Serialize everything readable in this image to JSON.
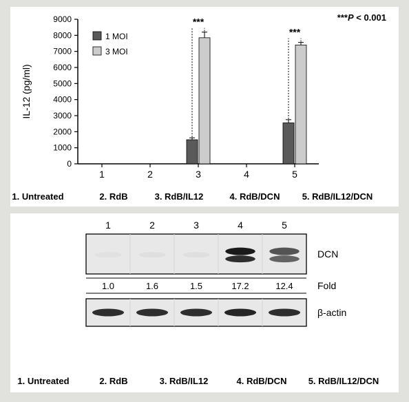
{
  "chart": {
    "type": "bar",
    "ylabel": "IL-12 (pg/ml)",
    "ylabel_fontsize": 14,
    "ylim": [
      0,
      9000
    ],
    "ytick_step": 1000,
    "yticks": [
      0,
      1000,
      2000,
      3000,
      4000,
      5000,
      6000,
      7000,
      8000,
      9000
    ],
    "categories": [
      "1",
      "2",
      "3",
      "4",
      "5"
    ],
    "series": [
      {
        "name": "1 MOI",
        "color": "#5a5a5a"
      },
      {
        "name": "3 MOI",
        "color": "#cccccc"
      }
    ],
    "values_moi1": [
      0,
      0,
      1500,
      0,
      2550
    ],
    "values_moi3": [
      0,
      0,
      7850,
      0,
      7400
    ],
    "err_moi1": [
      0,
      0,
      120,
      0,
      200
    ],
    "err_moi3": [
      0,
      0,
      350,
      0,
      160
    ],
    "sig_pairs": [
      3,
      5
    ],
    "sig_marker": "***",
    "sig_note": "***P < 0.001",
    "sig_note_italic_P": true,
    "axis_color": "#000000",
    "tick_fontsize": 12,
    "legend_box_stroke": "#000000",
    "legend_fontsize": 12,
    "bar_stroke": "#000000",
    "cond_labels": [
      "1. Untreated",
      "2. RdB",
      "3. RdB/IL12",
      "4. RdB/DCN",
      "5. RdB/IL12/DCN"
    ],
    "cond_fontsize": 13,
    "grid": false
  },
  "blot": {
    "lane_numbers": [
      "1",
      "2",
      "3",
      "4",
      "5"
    ],
    "dcn_label": "DCN",
    "actin_label": "β-actin",
    "fold_label": "Fold",
    "fold_values": [
      "1.0",
      "1.6",
      "1.5",
      "17.2",
      "12.4"
    ],
    "dcn_intensity": [
      0.02,
      0.03,
      0.03,
      1.0,
      0.72
    ],
    "actin_intensity": [
      0.9,
      0.9,
      0.9,
      0.95,
      0.9
    ],
    "band_color": "#1a1a1a",
    "bg_color": "#e8e8e8",
    "border_color": "#000000",
    "label_fontsize": 14,
    "num_fontsize": 13,
    "cond_labels": [
      "1. Untreated",
      "2. RdB",
      "3. RdB/IL12",
      "4. RdB/DCN",
      "5. RdB/IL12/DCN"
    ],
    "cond_fontsize": 13
  }
}
